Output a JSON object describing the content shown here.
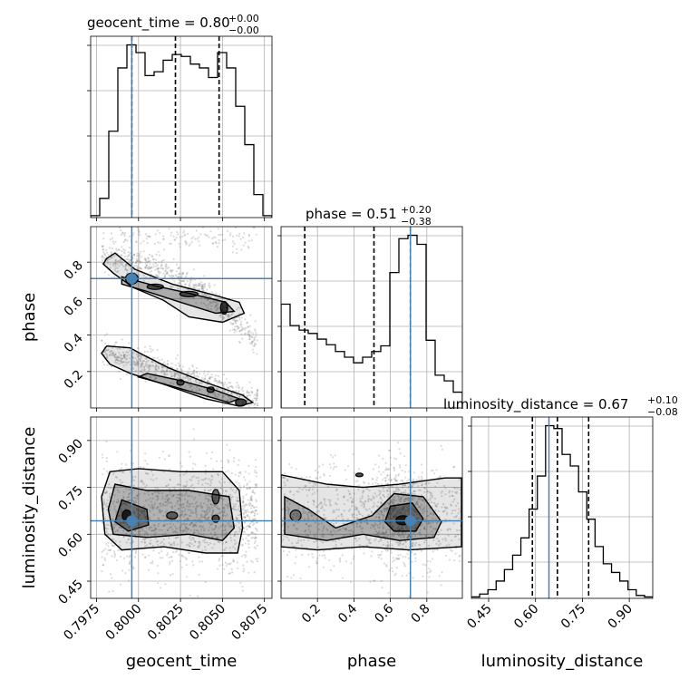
{
  "colors": {
    "truth": "#4682b4",
    "hist": "#000000",
    "grid": "#b0b0b0",
    "quantile": "#000000",
    "scatter": "#7f7f7f"
  },
  "chart_data": {
    "type": "corner",
    "parameters": [
      "geocent_time",
      "phase",
      "luminosity_distance"
    ],
    "ranges": {
      "geocent_time": [
        0.79715,
        0.80795
      ],
      "phase": [
        0.0,
        0.995
      ],
      "luminosity_distance": [
        0.395,
        0.975
      ]
    },
    "ticks": {
      "geocent_time": [
        "0.7975",
        "0.8000",
        "0.8025",
        "0.8050",
        "0.8075"
      ],
      "phase": [
        "0.2",
        "0.4",
        "0.6",
        "0.8"
      ],
      "luminosity_distance": [
        "0.45",
        "0.60",
        "0.75",
        "0.90"
      ]
    },
    "truths": {
      "geocent_time": 0.7996,
      "phase": 0.71,
      "luminosity_distance": 0.643
    },
    "titles": {
      "geocent_time": {
        "label": "geocent_time = 0.80",
        "plus": "+0.00",
        "minus": "−0.00",
        "quantiles": [
          0.7996,
          0.8022,
          0.8048
        ]
      },
      "phase": {
        "label": "phase = 0.51",
        "plus": "+0.20",
        "minus": "−0.38",
        "quantiles": [
          0.13,
          0.51,
          0.71
        ]
      },
      "luminosity_distance": {
        "label": "luminosity_distance = 0.67",
        "plus": "+0.10",
        "minus": "−0.08",
        "quantiles": [
          0.59,
          0.67,
          0.77
        ]
      }
    },
    "histograms": {
      "geocent_time": [
        1,
        10,
        45,
        78,
        90,
        86,
        74,
        76,
        82,
        85,
        84,
        80,
        78,
        73,
        86,
        78,
        58,
        38,
        12,
        1
      ],
      "phase": [
        92,
        73,
        69,
        66,
        61,
        56,
        50,
        45,
        40,
        45,
        50,
        55,
        120,
        150,
        153,
        145,
        60,
        29,
        24,
        14
      ],
      "luminosity_distance": [
        1,
        3,
        6,
        12,
        20,
        30,
        42,
        62,
        85,
        120,
        118,
        100,
        92,
        74,
        55,
        36,
        24,
        18,
        12,
        6,
        2,
        1
      ]
    },
    "grid": true
  }
}
